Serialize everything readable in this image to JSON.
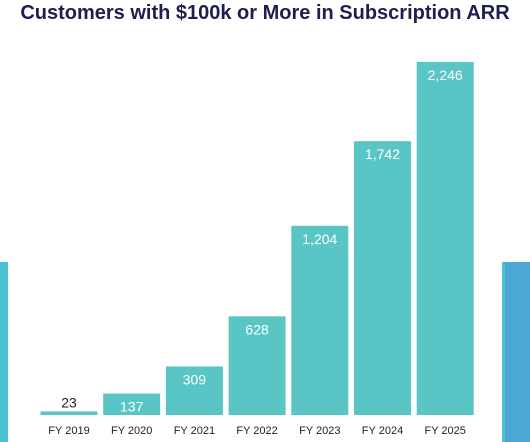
{
  "colors": {
    "bar": "#5ac5c5",
    "background_band": "#49c2cf",
    "title": "#1f1f4f"
  },
  "chart_data": {
    "type": "bar",
    "title": "Customers with $100k or More in Subscription ARR",
    "xlabel": "",
    "ylabel": "",
    "categories": [
      "FY 2019",
      "FY 2020",
      "FY 2021",
      "FY 2022",
      "FY 2023",
      "FY 2024",
      "FY 2025"
    ],
    "values": [
      23,
      137,
      309,
      628,
      1204,
      1742,
      2246
    ],
    "value_labels": [
      "23",
      "137",
      "309",
      "628",
      "1,204",
      "1,742",
      "2,246"
    ],
    "ylim": [
      0,
      2246
    ],
    "grid": false,
    "legend": "none"
  }
}
